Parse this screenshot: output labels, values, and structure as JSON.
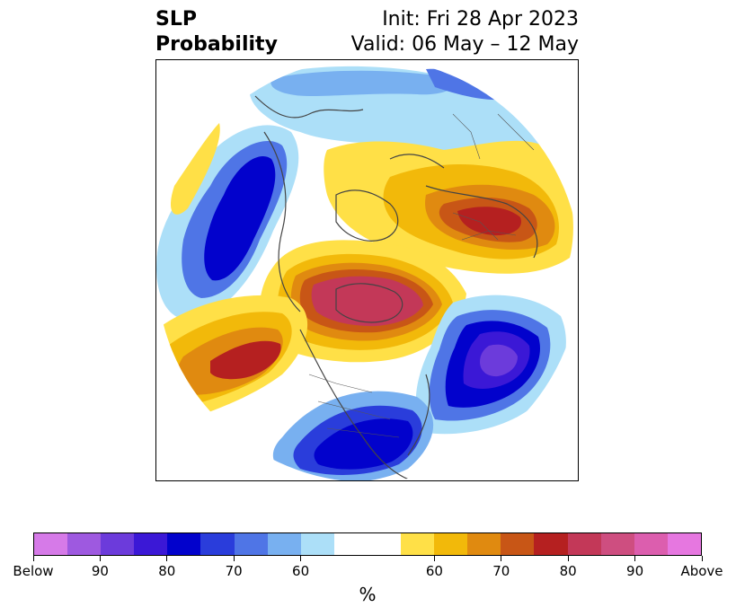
{
  "title": {
    "left_line1": "SLP",
    "left_line2": "Probability",
    "right_line1": "Init: Fri 28 Apr 2023",
    "right_line2": "Valid: 06 May – 12 May"
  },
  "colorbar": {
    "unit_label": "%",
    "colors": [
      "#d67ae8",
      "#9e59e0",
      "#6c3bdb",
      "#3b18d6",
      "#0202cc",
      "#2a3ddb",
      "#4f75e6",
      "#78b0f0",
      "#acdff8",
      "#ffffff",
      "#ffffff",
      "#ffe047",
      "#f2b90a",
      "#e08a10",
      "#c85616",
      "#b52020",
      "#c33858",
      "#ce4e80",
      "#dc5eae",
      "#e677e0"
    ],
    "tick_labels": [
      "Below",
      "90",
      "80",
      "70",
      "60",
      "60",
      "70",
      "80",
      "90",
      "Above"
    ]
  },
  "map": {
    "projection": "north-polar stereographic",
    "variable": "sea level pressure probability"
  }
}
